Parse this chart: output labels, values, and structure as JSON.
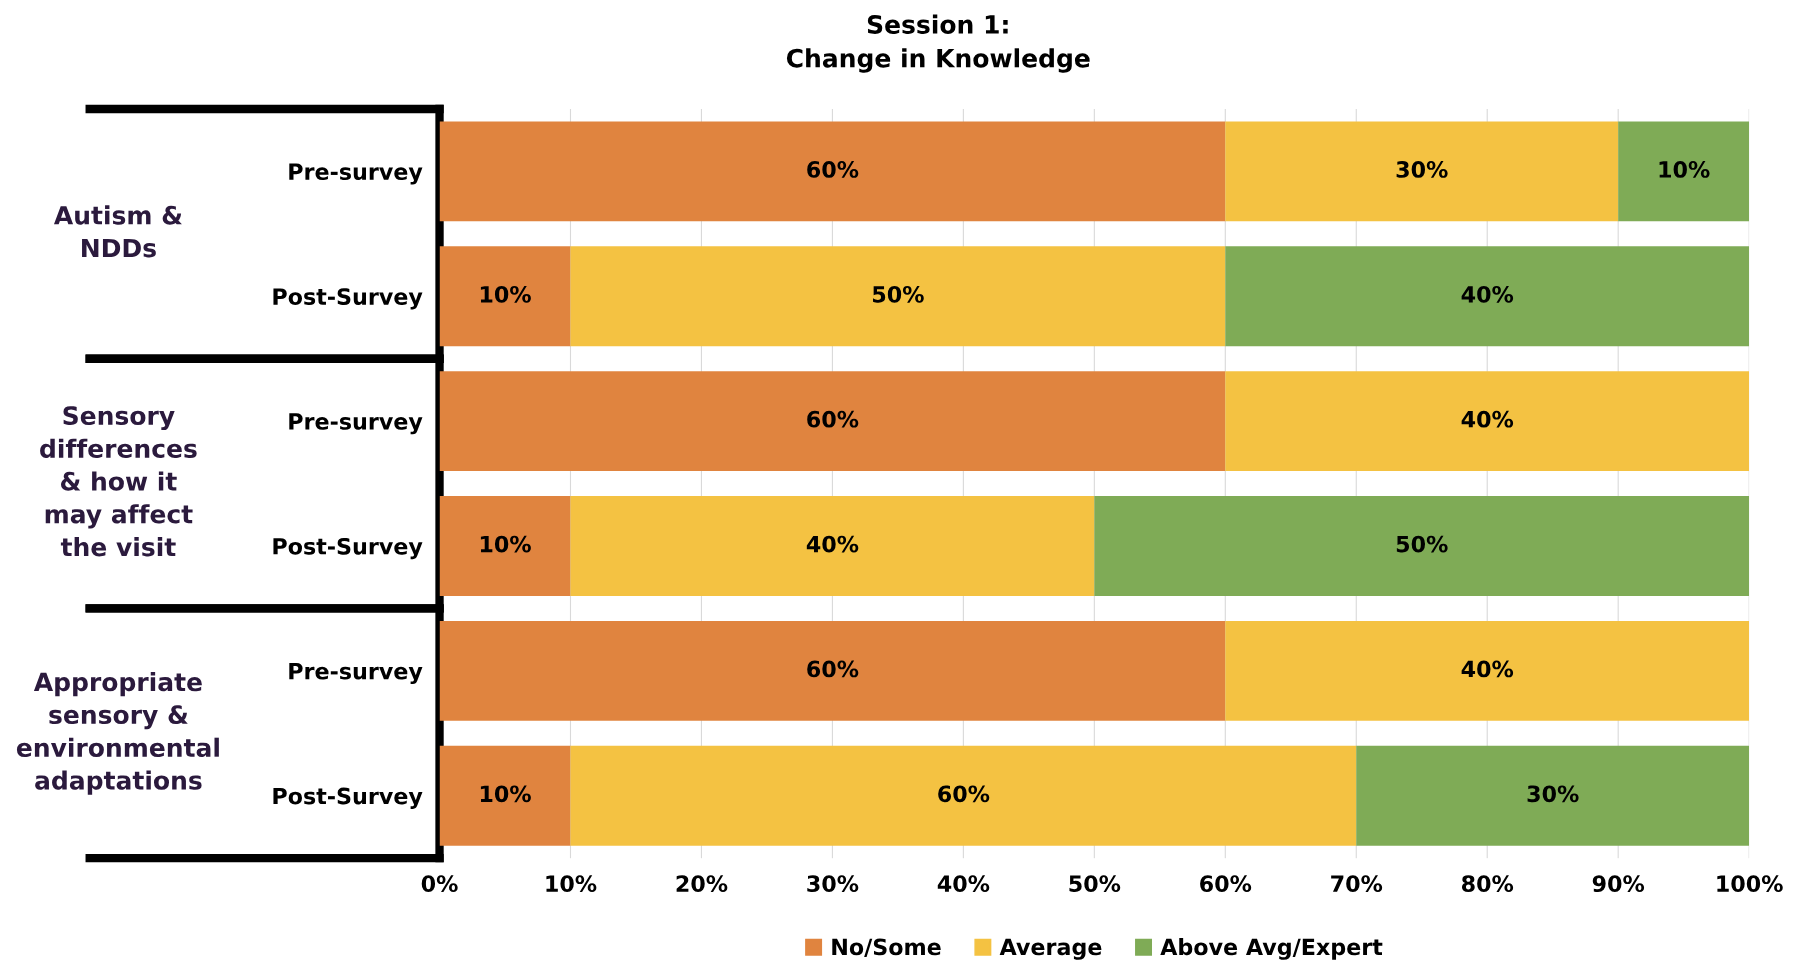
{
  "chart_data": {
    "type": "bar",
    "orientation": "horizontal",
    "stacked": true,
    "title": "Session 1:\nChange in Knowledge",
    "categories": [
      "Pre-survey",
      "Post-Survey",
      "Pre-survey",
      "Post-Survey",
      "Pre-survey",
      "Post-Survey"
    ],
    "series": [
      {
        "name": "No/Some",
        "color": "#e0843f",
        "values": [
          60,
          10,
          60,
          10,
          60,
          10
        ],
        "value_labels": [
          "60%",
          "10%",
          "60%",
          "10%",
          "60%",
          "10%"
        ]
      },
      {
        "name": "Average",
        "color": "#f4c242",
        "values": [
          30,
          50,
          40,
          40,
          40,
          60
        ],
        "value_labels": [
          "30%",
          "50%",
          "40%",
          "40%",
          "40%",
          "60%"
        ]
      },
      {
        "name": "Above Avg/Expert",
        "color": "#7fab56",
        "values": [
          10,
          40,
          0,
          50,
          0,
          30
        ],
        "value_labels": [
          "10%",
          "40%",
          null,
          "50%",
          null,
          "30%"
        ]
      }
    ],
    "annotations": [
      "Autism &\nNDDs",
      "Sensory\ndifferences\n& how it\nmay affect\nthe visit",
      "Appropriate\nsensory &\nenvironmental\nadaptations"
    ],
    "xlim": [
      0,
      100
    ],
    "xticks": [
      {
        "value": 0,
        "label": "0%"
      },
      {
        "value": 10,
        "label": "10%"
      },
      {
        "value": 20,
        "label": "20%"
      },
      {
        "value": 30,
        "label": "30%"
      },
      {
        "value": 40,
        "label": "40%"
      },
      {
        "value": 50,
        "label": "50%"
      },
      {
        "value": 60,
        "label": "60%"
      },
      {
        "value": 70,
        "label": "70%"
      },
      {
        "value": 80,
        "label": "80%"
      },
      {
        "value": 90,
        "label": "90%"
      },
      {
        "value": 100,
        "label": "100%"
      }
    ],
    "grid": "x",
    "legend": "bottom"
  }
}
